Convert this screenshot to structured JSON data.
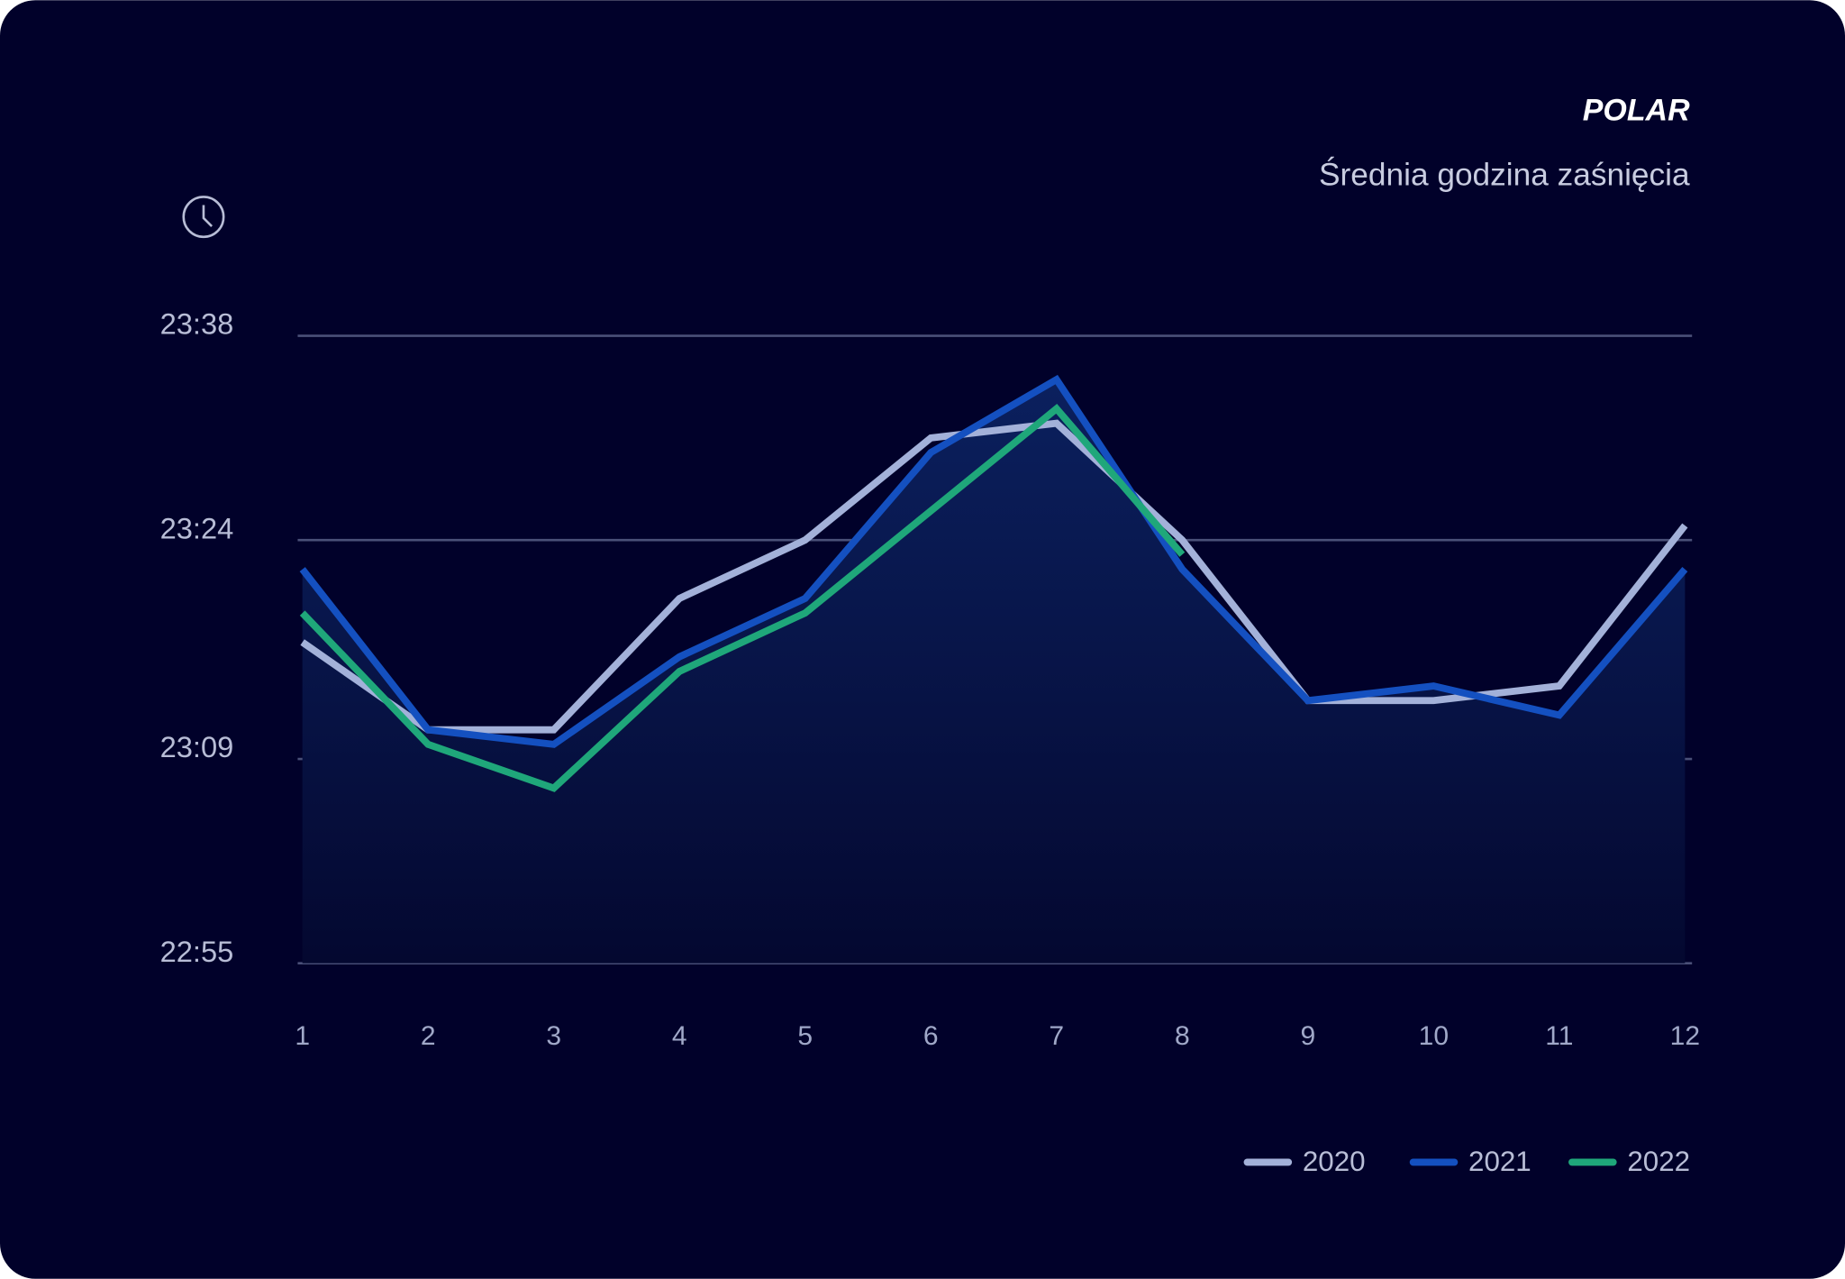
{
  "chart_data": {
    "type": "line",
    "logo": "POLAR",
    "title": "Średnia godzina zaśnięcia",
    "categories": [
      1,
      2,
      3,
      4,
      5,
      6,
      7,
      8,
      9,
      10,
      11,
      12
    ],
    "series": [
      {
        "name": "2020",
        "color": "#a3b1d9",
        "values": [
          1397,
          1391,
          1391,
          1400,
          1404,
          1411,
          1412,
          1404,
          1393,
          1393,
          1394,
          1405
        ]
      },
      {
        "name": "2021",
        "color": "#1450c0",
        "area": true,
        "values": [
          1402,
          1391,
          1390,
          1396,
          1400,
          1410,
          1415,
          1402,
          1393,
          1394,
          1392,
          1402
        ]
      },
      {
        "name": "2022",
        "color": "#1fa77a",
        "values": [
          1399,
          1390,
          1387,
          1395,
          1399,
          1406,
          1413,
          1403,
          null,
          null,
          null,
          null
        ]
      }
    ],
    "ylim": [
      1375,
      1418
    ],
    "yticks": [
      {
        "value": 1375,
        "label": "22:55"
      },
      {
        "value": 1389,
        "label": "23:09"
      },
      {
        "value": 1404,
        "label": "23:24"
      },
      {
        "value": 1418,
        "label": "23:38"
      }
    ],
    "grid": true
  }
}
